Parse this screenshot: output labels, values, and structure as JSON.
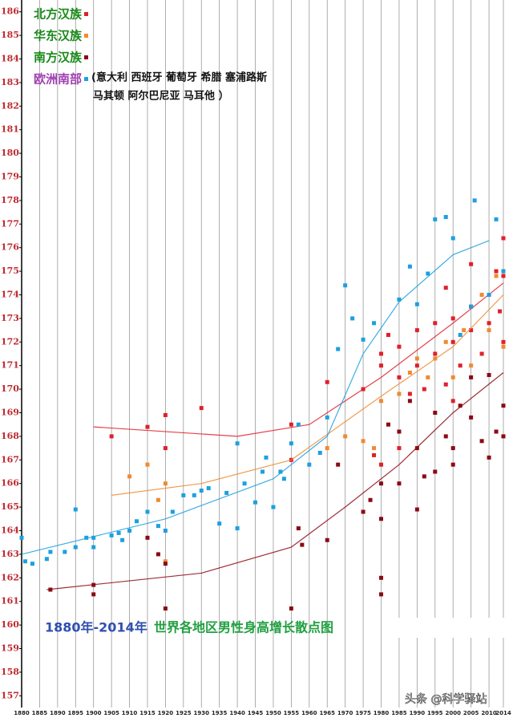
{
  "chart_data": {
    "type": "scatter",
    "title": "1880年-2014年",
    "subtitle": "世界各地区男性身高增长散点图",
    "annotation": [
      "(意大利 西班牙 葡萄牙 希腊 塞浦路斯",
      "马其顿 阿尔巴尼亚 马耳他 ）"
    ],
    "watermark": "头条 @科学驿站",
    "xlim": [
      1880,
      2014
    ],
    "xticks": [
      1880,
      1885,
      1890,
      1895,
      1900,
      1905,
      1910,
      1915,
      1920,
      1925,
      1930,
      1935,
      1940,
      1945,
      1950,
      1955,
      1960,
      1965,
      1970,
      1975,
      1980,
      1985,
      1990,
      1995,
      2000,
      2005,
      2010,
      2014
    ],
    "ylim": [
      156.5,
      186.5
    ],
    "yticks": [
      157,
      158,
      159,
      160,
      161,
      162,
      163,
      164,
      165,
      166,
      167,
      168,
      169,
      170,
      171,
      172,
      173,
      174,
      175,
      176,
      177,
      178,
      179,
      180,
      181,
      182,
      183,
      184,
      185,
      186
    ],
    "grid": "x",
    "series": [
      {
        "name": "北方汉族",
        "color": "#e0202a",
        "label_color": "#1a8a1a",
        "x": [
          1905,
          1915,
          1920,
          1920,
          1930,
          1955,
          1955,
          1965,
          1975,
          1978,
          1980,
          1980,
          1980,
          1982,
          1985,
          1985,
          1988,
          1990,
          1990,
          1992,
          1995,
          1995,
          1998,
          2000,
          2000,
          2002,
          2005,
          2005,
          2005,
          2008,
          2010,
          2010,
          2012,
          2013,
          2014,
          2014,
          2014,
          1998,
          1985,
          2000
        ],
        "values": [
          168.0,
          168.4,
          168.9,
          167.5,
          169.2,
          168.5,
          167.0,
          170.3,
          170.0,
          167.2,
          171.5,
          171.0,
          166.8,
          172.3,
          170.5,
          171.8,
          169.8,
          172.5,
          171.0,
          170.0,
          172.8,
          171.5,
          170.2,
          173.0,
          172.0,
          171.0,
          173.5,
          172.5,
          175.3,
          171.5,
          174.0,
          172.8,
          175.0,
          173.3,
          176.4,
          174.8,
          172.0,
          174.3,
          167.5,
          169.5
        ],
        "trend_x": [
          1900,
          1940,
          1960,
          1980,
          2000,
          2014
        ],
        "trend_y": [
          168.4,
          168.0,
          168.5,
          170.5,
          172.8,
          174.5
        ]
      },
      {
        "name": "华东汉族",
        "color": "#f08a30",
        "label_color": "#1a8a1a",
        "x": [
          1910,
          1915,
          1918,
          1920,
          1920,
          1965,
          1970,
          1975,
          1978,
          1980,
          1985,
          1988,
          1990,
          1993,
          1995,
          1998,
          2000,
          2003,
          2005,
          2008,
          2010,
          2012,
          2014,
          2014
        ],
        "values": [
          166.3,
          166.8,
          165.3,
          162.7,
          166.0,
          167.5,
          168.0,
          167.8,
          167.5,
          169.5,
          169.8,
          170.7,
          171.3,
          170.5,
          171.3,
          172.0,
          170.5,
          172.5,
          171.0,
          174.0,
          172.5,
          174.8,
          175.0,
          171.8
        ],
        "trend_x": [
          1905,
          1930,
          1955,
          1980,
          2000,
          2014
        ],
        "trend_y": [
          165.5,
          166.0,
          167.0,
          169.7,
          171.8,
          174.0
        ]
      },
      {
        "name": "南方汉族",
        "color": "#8b0a14",
        "label_color": "#1a8a1a",
        "x": [
          1888,
          1900,
          1900,
          1915,
          1918,
          1920,
          1920,
          1955,
          1957,
          1958,
          1965,
          1968,
          1975,
          1977,
          1980,
          1980,
          1980,
          1980,
          1982,
          1985,
          1985,
          1988,
          1990,
          1990,
          1992,
          1995,
          1995,
          1998,
          2000,
          2000,
          2002,
          2005,
          2005,
          2008,
          2010,
          2010,
          2012,
          2014,
          2014
        ],
        "values": [
          161.5,
          161.7,
          161.3,
          163.7,
          163.0,
          162.6,
          160.7,
          160.7,
          164.1,
          163.4,
          163.6,
          166.8,
          164.8,
          165.3,
          161.3,
          162.0,
          164.5,
          166.0,
          168.5,
          166.0,
          168.2,
          169.5,
          167.5,
          164.9,
          166.3,
          169.0,
          166.5,
          168.0,
          167.5,
          166.8,
          169.3,
          170.5,
          168.8,
          167.8,
          170.6,
          167.1,
          168.2,
          169.3,
          168.0
        ],
        "trend_x": [
          1887,
          1930,
          1955,
          1970,
          1985,
          2000,
          2014
        ],
        "trend_y": [
          161.5,
          162.2,
          163.3,
          165.0,
          166.8,
          169.0,
          170.7
        ]
      },
      {
        "name": "欧洲南部",
        "color": "#1ca0e0",
        "label_color": "#a040b0",
        "x": [
          1880,
          1881,
          1883,
          1887,
          1888,
          1892,
          1895,
          1895,
          1898,
          1900,
          1900,
          1905,
          1907,
          1908,
          1910,
          1912,
          1915,
          1918,
          1920,
          1922,
          1925,
          1928,
          1930,
          1932,
          1935,
          1937,
          1940,
          1940,
          1942,
          1945,
          1947,
          1948,
          1950,
          1952,
          1953,
          1955,
          1957,
          1960,
          1963,
          1965,
          1968,
          1970,
          1972,
          1975,
          1978,
          1985,
          1988,
          1990,
          1993,
          1995,
          1998,
          2000,
          2002,
          2005,
          2006,
          2010,
          2012,
          2014
        ],
        "values": [
          163.7,
          162.7,
          162.6,
          162.8,
          163.1,
          163.1,
          164.9,
          163.3,
          163.7,
          163.3,
          163.7,
          163.8,
          163.9,
          163.6,
          164.0,
          164.4,
          164.8,
          164.2,
          164.0,
          164.8,
          165.5,
          165.5,
          165.7,
          165.8,
          164.3,
          165.6,
          167.7,
          164.1,
          166.0,
          165.2,
          166.5,
          167.1,
          165.0,
          166.5,
          166.2,
          167.7,
          168.5,
          166.8,
          167.3,
          168.8,
          171.7,
          174.4,
          173.0,
          172.1,
          172.8,
          173.8,
          175.2,
          173.6,
          174.9,
          177.2,
          177.3,
          176.4,
          172.3,
          173.5,
          178.0,
          174.0,
          177.2,
          175.0
        ],
        "trend_x": [
          1880,
          1920,
          1950,
          1965,
          1975,
          1985,
          2000,
          2010
        ],
        "trend_y": [
          163.0,
          164.5,
          166.2,
          168.0,
          171.5,
          173.7,
          175.7,
          176.3
        ]
      }
    ]
  }
}
